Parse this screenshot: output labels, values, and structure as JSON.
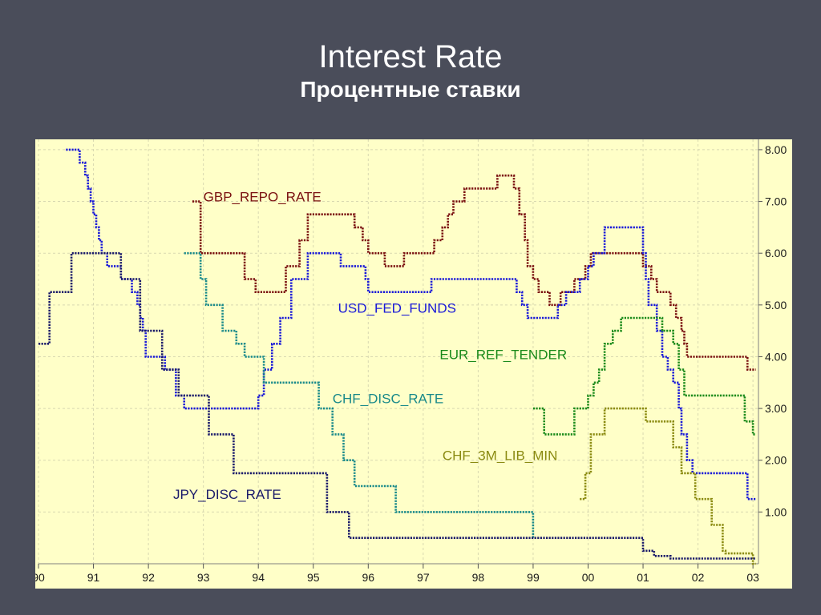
{
  "slide": {
    "title": "Interest Rate",
    "subtitle": "Процентные ставки"
  },
  "colors": {
    "background": "#4a4d5a",
    "plot_bg": "#ffffc8",
    "grid": "#d8d8b0"
  },
  "chart_data": {
    "type": "line",
    "title": "",
    "xlabel": "",
    "ylabel": "",
    "x_ticks": [
      "90",
      "91",
      "92",
      "93",
      "94",
      "95",
      "96",
      "97",
      "98",
      "99",
      "00",
      "01",
      "02",
      "03"
    ],
    "y_ticks": [
      "1.00",
      "2.00",
      "3.00",
      "4.00",
      "5.00",
      "6.00",
      "7.00",
      "8.00"
    ],
    "xlim": [
      1990.0,
      2003.1
    ],
    "ylim": [
      0,
      8.2
    ],
    "grid": true,
    "y_axis_side": "right",
    "series": [
      {
        "name": "GBP_REPO_RATE",
        "color": "#7a1010",
        "label_pos": [
          1993.0,
          7.0
        ],
        "points": [
          [
            1992.8,
            7.0
          ],
          [
            1992.95,
            7.0
          ],
          [
            1992.95,
            6.0
          ],
          [
            1993.75,
            6.0
          ],
          [
            1993.75,
            5.5
          ],
          [
            1993.95,
            5.5
          ],
          [
            1993.95,
            5.25
          ],
          [
            1994.5,
            5.25
          ],
          [
            1994.5,
            5.75
          ],
          [
            1994.75,
            5.75
          ],
          [
            1994.75,
            6.25
          ],
          [
            1994.9,
            6.25
          ],
          [
            1994.9,
            6.75
          ],
          [
            1995.75,
            6.75
          ],
          [
            1995.75,
            6.5
          ],
          [
            1995.9,
            6.5
          ],
          [
            1995.9,
            6.25
          ],
          [
            1996.0,
            6.25
          ],
          [
            1996.0,
            6.0
          ],
          [
            1996.3,
            6.0
          ],
          [
            1996.3,
            5.75
          ],
          [
            1996.65,
            5.75
          ],
          [
            1996.65,
            6.0
          ],
          [
            1997.2,
            6.0
          ],
          [
            1997.2,
            6.25
          ],
          [
            1997.35,
            6.25
          ],
          [
            1997.35,
            6.5
          ],
          [
            1997.45,
            6.5
          ],
          [
            1997.45,
            6.75
          ],
          [
            1997.55,
            6.75
          ],
          [
            1997.55,
            7.0
          ],
          [
            1997.75,
            7.0
          ],
          [
            1997.75,
            7.25
          ],
          [
            1998.35,
            7.25
          ],
          [
            1998.35,
            7.5
          ],
          [
            1998.65,
            7.5
          ],
          [
            1998.65,
            7.25
          ],
          [
            1998.75,
            7.25
          ],
          [
            1998.75,
            6.75
          ],
          [
            1998.85,
            6.75
          ],
          [
            1998.85,
            6.25
          ],
          [
            1998.9,
            6.25
          ],
          [
            1998.9,
            5.75
          ],
          [
            1999.0,
            5.75
          ],
          [
            1999.0,
            5.5
          ],
          [
            1999.1,
            5.5
          ],
          [
            1999.1,
            5.25
          ],
          [
            1999.3,
            5.25
          ],
          [
            1999.3,
            5.0
          ],
          [
            1999.5,
            5.0
          ],
          [
            1999.5,
            5.25
          ],
          [
            1999.75,
            5.25
          ],
          [
            1999.75,
            5.5
          ],
          [
            1999.95,
            5.5
          ],
          [
            1999.95,
            5.75
          ],
          [
            2000.05,
            5.75
          ],
          [
            2000.05,
            6.0
          ],
          [
            2001.0,
            6.0
          ],
          [
            2001.0,
            5.75
          ],
          [
            2001.15,
            5.75
          ],
          [
            2001.15,
            5.5
          ],
          [
            2001.25,
            5.5
          ],
          [
            2001.25,
            5.25
          ],
          [
            2001.5,
            5.25
          ],
          [
            2001.5,
            5.0
          ],
          [
            2001.6,
            5.0
          ],
          [
            2001.6,
            4.75
          ],
          [
            2001.7,
            4.75
          ],
          [
            2001.7,
            4.5
          ],
          [
            2001.75,
            4.5
          ],
          [
            2001.75,
            4.25
          ],
          [
            2001.8,
            4.25
          ],
          [
            2001.8,
            4.0
          ],
          [
            2002.9,
            4.0
          ],
          [
            2002.9,
            3.75
          ],
          [
            2003.05,
            3.75
          ]
        ]
      },
      {
        "name": "USD_FED_FUNDS",
        "color": "#1a1ad8",
        "label_pos": [
          1995.45,
          4.85
        ],
        "points": [
          [
            1990.5,
            8.0
          ],
          [
            1990.75,
            8.0
          ],
          [
            1990.75,
            7.75
          ],
          [
            1990.85,
            7.75
          ],
          [
            1990.85,
            7.5
          ],
          [
            1990.9,
            7.5
          ],
          [
            1990.9,
            7.25
          ],
          [
            1990.95,
            7.25
          ],
          [
            1990.95,
            7.0
          ],
          [
            1991.0,
            7.0
          ],
          [
            1991.0,
            6.75
          ],
          [
            1991.05,
            6.75
          ],
          [
            1991.05,
            6.5
          ],
          [
            1991.1,
            6.5
          ],
          [
            1991.1,
            6.25
          ],
          [
            1991.15,
            6.25
          ],
          [
            1991.15,
            6.0
          ],
          [
            1991.25,
            6.0
          ],
          [
            1991.25,
            5.75
          ],
          [
            1991.5,
            5.75
          ],
          [
            1991.5,
            5.5
          ],
          [
            1991.7,
            5.5
          ],
          [
            1991.7,
            5.25
          ],
          [
            1991.8,
            5.25
          ],
          [
            1991.8,
            5.0
          ],
          [
            1991.85,
            5.0
          ],
          [
            1991.85,
            4.75
          ],
          [
            1991.9,
            4.75
          ],
          [
            1991.9,
            4.5
          ],
          [
            1991.95,
            4.5
          ],
          [
            1991.95,
            4.0
          ],
          [
            1992.3,
            4.0
          ],
          [
            1992.3,
            3.75
          ],
          [
            1992.5,
            3.75
          ],
          [
            1992.5,
            3.25
          ],
          [
            1992.65,
            3.25
          ],
          [
            1992.65,
            3.0
          ],
          [
            1994.0,
            3.0
          ],
          [
            1994.0,
            3.25
          ],
          [
            1994.1,
            3.25
          ],
          [
            1994.1,
            3.75
          ],
          [
            1994.25,
            3.75
          ],
          [
            1994.25,
            4.25
          ],
          [
            1994.4,
            4.25
          ],
          [
            1994.4,
            4.75
          ],
          [
            1994.6,
            4.75
          ],
          [
            1994.6,
            5.5
          ],
          [
            1994.9,
            5.5
          ],
          [
            1994.9,
            6.0
          ],
          [
            1995.5,
            6.0
          ],
          [
            1995.5,
            5.75
          ],
          [
            1995.95,
            5.75
          ],
          [
            1995.95,
            5.5
          ],
          [
            1996.0,
            5.5
          ],
          [
            1996.0,
            5.25
          ],
          [
            1997.15,
            5.25
          ],
          [
            1997.15,
            5.5
          ],
          [
            1998.7,
            5.5
          ],
          [
            1998.7,
            5.25
          ],
          [
            1998.8,
            5.25
          ],
          [
            1998.8,
            5.0
          ],
          [
            1998.9,
            5.0
          ],
          [
            1998.9,
            4.75
          ],
          [
            1999.45,
            4.75
          ],
          [
            1999.45,
            5.0
          ],
          [
            1999.6,
            5.0
          ],
          [
            1999.6,
            5.25
          ],
          [
            1999.85,
            5.25
          ],
          [
            1999.85,
            5.5
          ],
          [
            2000.0,
            5.5
          ],
          [
            2000.0,
            5.75
          ],
          [
            2000.1,
            5.75
          ],
          [
            2000.1,
            6.0
          ],
          [
            2000.3,
            6.0
          ],
          [
            2000.3,
            6.5
          ],
          [
            2001.0,
            6.5
          ],
          [
            2001.0,
            6.0
          ],
          [
            2001.05,
            6.0
          ],
          [
            2001.05,
            5.5
          ],
          [
            2001.1,
            5.5
          ],
          [
            2001.1,
            5.0
          ],
          [
            2001.25,
            5.0
          ],
          [
            2001.25,
            4.5
          ],
          [
            2001.35,
            4.5
          ],
          [
            2001.35,
            4.0
          ],
          [
            2001.45,
            4.0
          ],
          [
            2001.45,
            3.75
          ],
          [
            2001.55,
            3.75
          ],
          [
            2001.55,
            3.5
          ],
          [
            2001.65,
            3.5
          ],
          [
            2001.65,
            3.0
          ],
          [
            2001.7,
            3.0
          ],
          [
            2001.7,
            2.5
          ],
          [
            2001.8,
            2.5
          ],
          [
            2001.8,
            2.0
          ],
          [
            2001.9,
            2.0
          ],
          [
            2001.9,
            1.75
          ],
          [
            2002.9,
            1.75
          ],
          [
            2002.9,
            1.25
          ],
          [
            2003.05,
            1.25
          ]
        ]
      },
      {
        "name": "EUR_REF_TENDER",
        "color": "#1a8a1a",
        "label_pos": [
          1997.3,
          3.95
        ],
        "points": [
          [
            1999.0,
            3.0
          ],
          [
            1999.2,
            3.0
          ],
          [
            1999.2,
            2.5
          ],
          [
            1999.75,
            2.5
          ],
          [
            1999.75,
            3.0
          ],
          [
            2000.0,
            3.0
          ],
          [
            2000.0,
            3.25
          ],
          [
            2000.1,
            3.25
          ],
          [
            2000.1,
            3.5
          ],
          [
            2000.2,
            3.5
          ],
          [
            2000.2,
            3.75
          ],
          [
            2000.3,
            3.75
          ],
          [
            2000.3,
            4.25
          ],
          [
            2000.45,
            4.25
          ],
          [
            2000.45,
            4.5
          ],
          [
            2000.6,
            4.5
          ],
          [
            2000.6,
            4.75
          ],
          [
            2001.35,
            4.75
          ],
          [
            2001.35,
            4.5
          ],
          [
            2001.55,
            4.5
          ],
          [
            2001.55,
            4.25
          ],
          [
            2001.65,
            4.25
          ],
          [
            2001.65,
            3.75
          ],
          [
            2001.75,
            3.75
          ],
          [
            2001.75,
            3.25
          ],
          [
            2002.85,
            3.25
          ],
          [
            2002.85,
            2.75
          ],
          [
            2003.0,
            2.75
          ],
          [
            2003.0,
            2.5
          ],
          [
            2003.05,
            2.5
          ]
        ]
      },
      {
        "name": "CHF_DISC_RATE",
        "color": "#1a8a8a",
        "label_pos": [
          1995.35,
          3.1
        ],
        "points": [
          [
            1992.65,
            6.0
          ],
          [
            1992.95,
            6.0
          ],
          [
            1992.95,
            5.5
          ],
          [
            1993.05,
            5.5
          ],
          [
            1993.05,
            5.0
          ],
          [
            1993.35,
            5.0
          ],
          [
            1993.35,
            4.5
          ],
          [
            1993.6,
            4.5
          ],
          [
            1993.6,
            4.25
          ],
          [
            1993.75,
            4.25
          ],
          [
            1993.75,
            4.0
          ],
          [
            1994.1,
            4.0
          ],
          [
            1994.1,
            3.5
          ],
          [
            1995.1,
            3.5
          ],
          [
            1995.1,
            3.0
          ],
          [
            1995.35,
            3.0
          ],
          [
            1995.35,
            2.5
          ],
          [
            1995.55,
            2.5
          ],
          [
            1995.55,
            2.0
          ],
          [
            1995.75,
            2.0
          ],
          [
            1995.75,
            1.5
          ],
          [
            1996.5,
            1.5
          ],
          [
            1996.5,
            1.0
          ],
          [
            1999.0,
            1.0
          ],
          [
            1999.0,
            0.5
          ]
        ]
      },
      {
        "name": "CHF_3M_LIB_MIN",
        "color": "#8a8a10",
        "label_pos": [
          1997.35,
          2.0
        ],
        "points": [
          [
            1999.85,
            1.25
          ],
          [
            1999.95,
            1.25
          ],
          [
            1999.95,
            1.75
          ],
          [
            2000.05,
            1.75
          ],
          [
            2000.05,
            2.5
          ],
          [
            2000.3,
            2.5
          ],
          [
            2000.3,
            3.0
          ],
          [
            2001.05,
            3.0
          ],
          [
            2001.05,
            2.75
          ],
          [
            2001.55,
            2.75
          ],
          [
            2001.55,
            2.25
          ],
          [
            2001.7,
            2.25
          ],
          [
            2001.7,
            1.75
          ],
          [
            2001.95,
            1.75
          ],
          [
            2001.95,
            1.25
          ],
          [
            2002.25,
            1.25
          ],
          [
            2002.25,
            0.75
          ],
          [
            2002.45,
            0.75
          ],
          [
            2002.45,
            0.25
          ],
          [
            2002.5,
            0.25
          ],
          [
            2002.5,
            0.2
          ],
          [
            2003.0,
            0.2
          ],
          [
            2003.0,
            0.0
          ],
          [
            2003.05,
            0.0
          ]
        ]
      },
      {
        "name": "JPY_DISC_RATE",
        "color": "#1a1a6a",
        "label_pos": [
          1992.45,
          1.25
        ],
        "points": [
          [
            1990.0,
            4.25
          ],
          [
            1990.2,
            4.25
          ],
          [
            1990.2,
            5.25
          ],
          [
            1990.6,
            5.25
          ],
          [
            1990.6,
            6.0
          ],
          [
            1991.5,
            6.0
          ],
          [
            1991.5,
            5.5
          ],
          [
            1991.85,
            5.5
          ],
          [
            1991.85,
            4.5
          ],
          [
            1992.25,
            4.5
          ],
          [
            1992.25,
            3.75
          ],
          [
            1992.55,
            3.75
          ],
          [
            1992.55,
            3.25
          ],
          [
            1993.1,
            3.25
          ],
          [
            1993.1,
            2.5
          ],
          [
            1993.55,
            2.5
          ],
          [
            1993.55,
            1.75
          ],
          [
            1995.25,
            1.75
          ],
          [
            1995.25,
            1.0
          ],
          [
            1995.65,
            1.0
          ],
          [
            1995.65,
            0.5
          ],
          [
            2001.0,
            0.5
          ],
          [
            2001.0,
            0.25
          ],
          [
            2001.2,
            0.25
          ],
          [
            2001.2,
            0.15
          ],
          [
            2001.5,
            0.15
          ],
          [
            2001.5,
            0.1
          ],
          [
            2003.05,
            0.1
          ]
        ]
      }
    ]
  }
}
